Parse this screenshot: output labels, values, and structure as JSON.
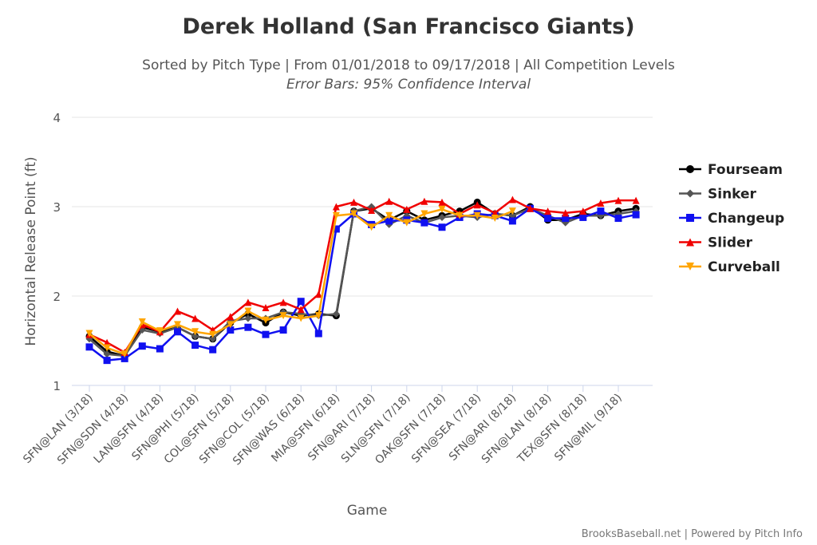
{
  "chart_data": {
    "type": "line",
    "title": "Derek Holland (San Francisco Giants)",
    "subtitle": "Sorted by Pitch Type | From 01/01/2018 to 09/17/2018 | All Competition Levels",
    "subtitle2": "Error Bars: 95% Confidence Interval",
    "xlabel": "Game",
    "ylabel": "Horizontal Release Point (ft)",
    "ylim": [
      1,
      4
    ],
    "yticks": [
      1,
      2,
      3,
      4
    ],
    "x_tick_labels": [
      "SFN@LAN (3/18)",
      "SFN@SDN (4/18)",
      "LAN@SFN (4/18)",
      "SFN@PHI (5/18)",
      "COL@SFN (5/18)",
      "SFN@COL (5/18)",
      "SFN@WAS (6/18)",
      "MIA@SFN (6/18)",
      "SFN@ARI (7/18)",
      "SLN@SFN (7/18)",
      "OAK@SFN (7/18)",
      "SFN@SEA (7/18)",
      "SFN@ARI (8/18)",
      "SFN@LAN (8/18)",
      "TEX@SFN (8/18)",
      "SFN@MIL (9/18)"
    ],
    "n_games": 32,
    "legend_position": "right",
    "series": [
      {
        "name": "Fourseam",
        "color": "#000000",
        "marker": "circle",
        "values": [
          1.55,
          1.38,
          1.33,
          1.65,
          1.6,
          1.65,
          1.55,
          1.52,
          1.7,
          1.8,
          1.7,
          1.82,
          1.78,
          1.8,
          1.78,
          2.95,
          2.98,
          2.85,
          2.95,
          2.85,
          2.9,
          2.95,
          3.05,
          2.92,
          2.9,
          3.0,
          2.85,
          2.85,
          2.92,
          2.9,
          2.95,
          2.98
        ]
      },
      {
        "name": "Sinker",
        "color": "#555555",
        "marker": "diamond",
        "values": [
          1.52,
          1.35,
          1.33,
          1.62,
          1.58,
          1.65,
          1.55,
          1.52,
          1.72,
          1.75,
          1.75,
          1.82,
          1.8,
          1.78,
          1.8,
          2.95,
          3.0,
          2.8,
          2.9,
          2.82,
          2.88,
          2.9,
          2.88,
          2.92,
          2.9,
          2.98,
          2.9,
          2.82,
          2.9,
          2.9,
          2.92,
          2.95
        ]
      },
      {
        "name": "Changeup",
        "color": "#1010f0",
        "marker": "square",
        "values": [
          1.43,
          1.28,
          1.3,
          1.44,
          1.41,
          1.6,
          1.45,
          1.4,
          1.62,
          1.65,
          1.57,
          1.62,
          1.94,
          1.58,
          2.75,
          2.92,
          2.8,
          2.84,
          2.85,
          2.82,
          2.77,
          2.88,
          2.92,
          2.9,
          2.84,
          2.98,
          2.87,
          2.87,
          2.88,
          2.95,
          2.87,
          2.91
        ]
      },
      {
        "name": "Slider",
        "color": "#f00000",
        "marker": "triangle",
        "values": [
          1.57,
          1.48,
          1.37,
          1.68,
          1.6,
          1.83,
          1.75,
          1.62,
          1.77,
          1.93,
          1.87,
          1.93,
          1.85,
          2.02,
          3.0,
          3.05,
          2.96,
          3.06,
          2.97,
          3.06,
          3.05,
          2.92,
          3.02,
          2.93,
          3.08,
          2.98,
          2.95,
          2.93,
          2.95,
          3.04,
          3.07,
          3.07
        ]
      },
      {
        "name": "Curveball",
        "color": "#ffa500",
        "marker": "triangle-down",
        "values": [
          1.58,
          1.42,
          1.35,
          1.71,
          1.61,
          1.68,
          1.6,
          1.57,
          1.68,
          1.83,
          1.73,
          1.78,
          1.75,
          1.78,
          2.9,
          2.92,
          2.77,
          2.9,
          2.82,
          2.92,
          2.97,
          2.9,
          2.9,
          2.87,
          2.95
        ]
      }
    ]
  },
  "credits": "BrooksBaseball.net | Powered by Pitch Info"
}
